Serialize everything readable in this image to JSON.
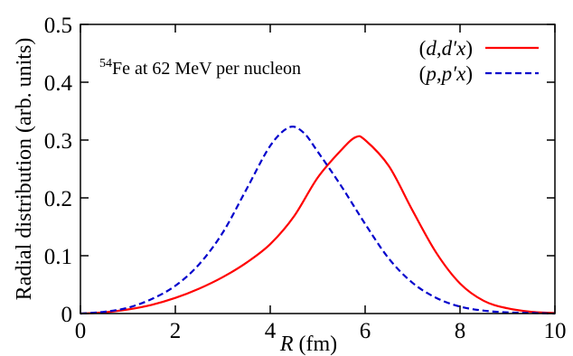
{
  "chart_data": {
    "type": "line",
    "xlabel_italic": "R",
    "xlabel_rest": " (fm)",
    "ylabel": "Radial distribution (arb. units)",
    "xlim": [
      0,
      10
    ],
    "ylim": [
      0,
      0.5
    ],
    "xticks": [
      0,
      2,
      4,
      6,
      8,
      10
    ],
    "xtick_labels": [
      "0",
      "2",
      "4",
      "6",
      "8",
      "10"
    ],
    "yticks": [
      0,
      0.1,
      0.2,
      0.3,
      0.4,
      0.5
    ],
    "ytick_labels": [
      "0",
      "0.1",
      "0.2",
      "0.3",
      "0.4",
      "0.5"
    ],
    "grid": false,
    "legend_position": "top-right",
    "annotation": {
      "sup": "54",
      "text": "Fe at 62 MeV per nucleon"
    },
    "series": [
      {
        "name": "(d,d′x)",
        "legend_parts": [
          "(",
          "d",
          ",",
          "d′x",
          ")"
        ],
        "color": "#ff0000",
        "style": "solid",
        "x": [
          0,
          0.5,
          1.0,
          1.5,
          2.0,
          2.5,
          3.0,
          3.5,
          4.0,
          4.5,
          5.0,
          5.5,
          5.8,
          6.0,
          6.5,
          7.0,
          7.5,
          8.0,
          8.5,
          9.0,
          9.5,
          10.0
        ],
        "y": [
          0,
          0.002,
          0.007,
          0.015,
          0.027,
          0.043,
          0.063,
          0.088,
          0.12,
          0.168,
          0.235,
          0.283,
          0.305,
          0.3,
          0.255,
          0.178,
          0.105,
          0.052,
          0.022,
          0.009,
          0.003,
          0.001
        ]
      },
      {
        "name": "(p,p′x)",
        "legend_parts": [
          "(",
          "p",
          ",",
          "p′x",
          ")"
        ],
        "color": "#0000cc",
        "style": "dashed",
        "x": [
          0,
          0.5,
          1.0,
          1.5,
          2.0,
          2.5,
          3.0,
          3.5,
          4.0,
          4.4,
          4.7,
          5.0,
          5.5,
          6.0,
          6.5,
          7.0,
          7.5,
          8.0,
          8.5,
          9.0,
          9.5,
          10.0
        ],
        "y": [
          0,
          0.003,
          0.01,
          0.025,
          0.048,
          0.085,
          0.14,
          0.215,
          0.29,
          0.322,
          0.313,
          0.28,
          0.22,
          0.155,
          0.095,
          0.053,
          0.027,
          0.012,
          0.005,
          0.002,
          0.001,
          0.0
        ]
      }
    ]
  }
}
